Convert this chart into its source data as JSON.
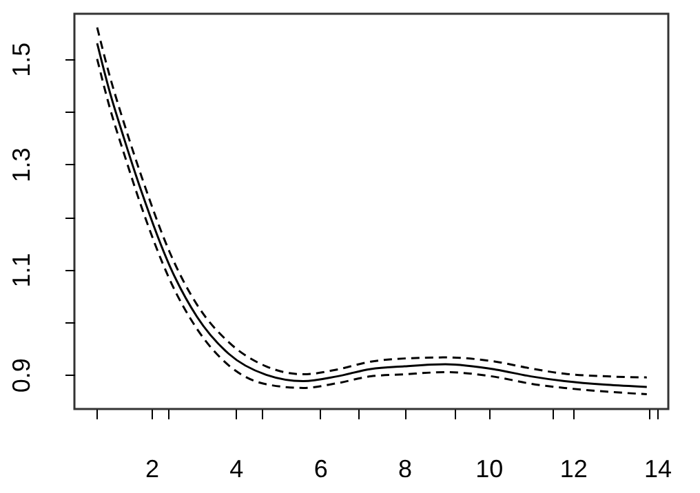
{
  "chart_data": {
    "type": "line",
    "xlim": [
      0.17,
      14.26
    ],
    "ylim": [
      0.835,
      1.586
    ],
    "xticks": [
      {
        "value": 0.7,
        "label": null
      },
      2,
      {
        "value": 2.4,
        "label": null
      },
      4,
      {
        "value": 4.6,
        "label": null
      },
      6,
      {
        "value": 6.9,
        "label": null
      },
      8,
      {
        "value": 9.2,
        "label": null
      },
      10,
      {
        "value": 11.5,
        "label": null
      },
      12,
      {
        "value": 13.8,
        "label": null
      },
      14
    ],
    "yticks": [
      0.9,
      {
        "value": 1.0,
        "label": null
      },
      1.1,
      {
        "value": 1.2,
        "label": null
      },
      1.3,
      {
        "value": 1.4,
        "label": null
      },
      1.5
    ],
    "grid": false,
    "marker": "none",
    "x": [
      0.71,
      1.0,
      1.34,
      1.77,
      2.43,
      3.08,
      3.83,
      4.72,
      5.6,
      6.4,
      7.2,
      8.0,
      8.97,
      10.16,
      11.0,
      11.8,
      12.8,
      13.75
    ],
    "series": [
      {
        "color": "#000000",
        "line_style": "solid",
        "values": [
          1.53,
          1.44,
          1.351,
          1.246,
          1.107,
          1.01,
          0.94,
          0.9,
          0.888,
          0.897,
          0.911,
          0.916,
          0.92,
          0.91,
          0.897,
          0.888,
          0.881,
          0.877
        ]
      },
      {
        "color": "#000000",
        "line_style": "dashed",
        "values": [
          1.56,
          1.47,
          1.38,
          1.275,
          1.133,
          1.033,
          0.962,
          0.916,
          0.901,
          0.91,
          0.925,
          0.931,
          0.933,
          0.925,
          0.912,
          0.902,
          0.897,
          0.895
        ]
      },
      {
        "color": "#000000",
        "line_style": "dashed",
        "values": [
          1.5,
          1.41,
          1.322,
          1.217,
          1.081,
          0.987,
          0.918,
          0.882,
          0.875,
          0.884,
          0.897,
          0.901,
          0.905,
          0.896,
          0.883,
          0.875,
          0.868,
          0.863
        ]
      }
    ]
  }
}
